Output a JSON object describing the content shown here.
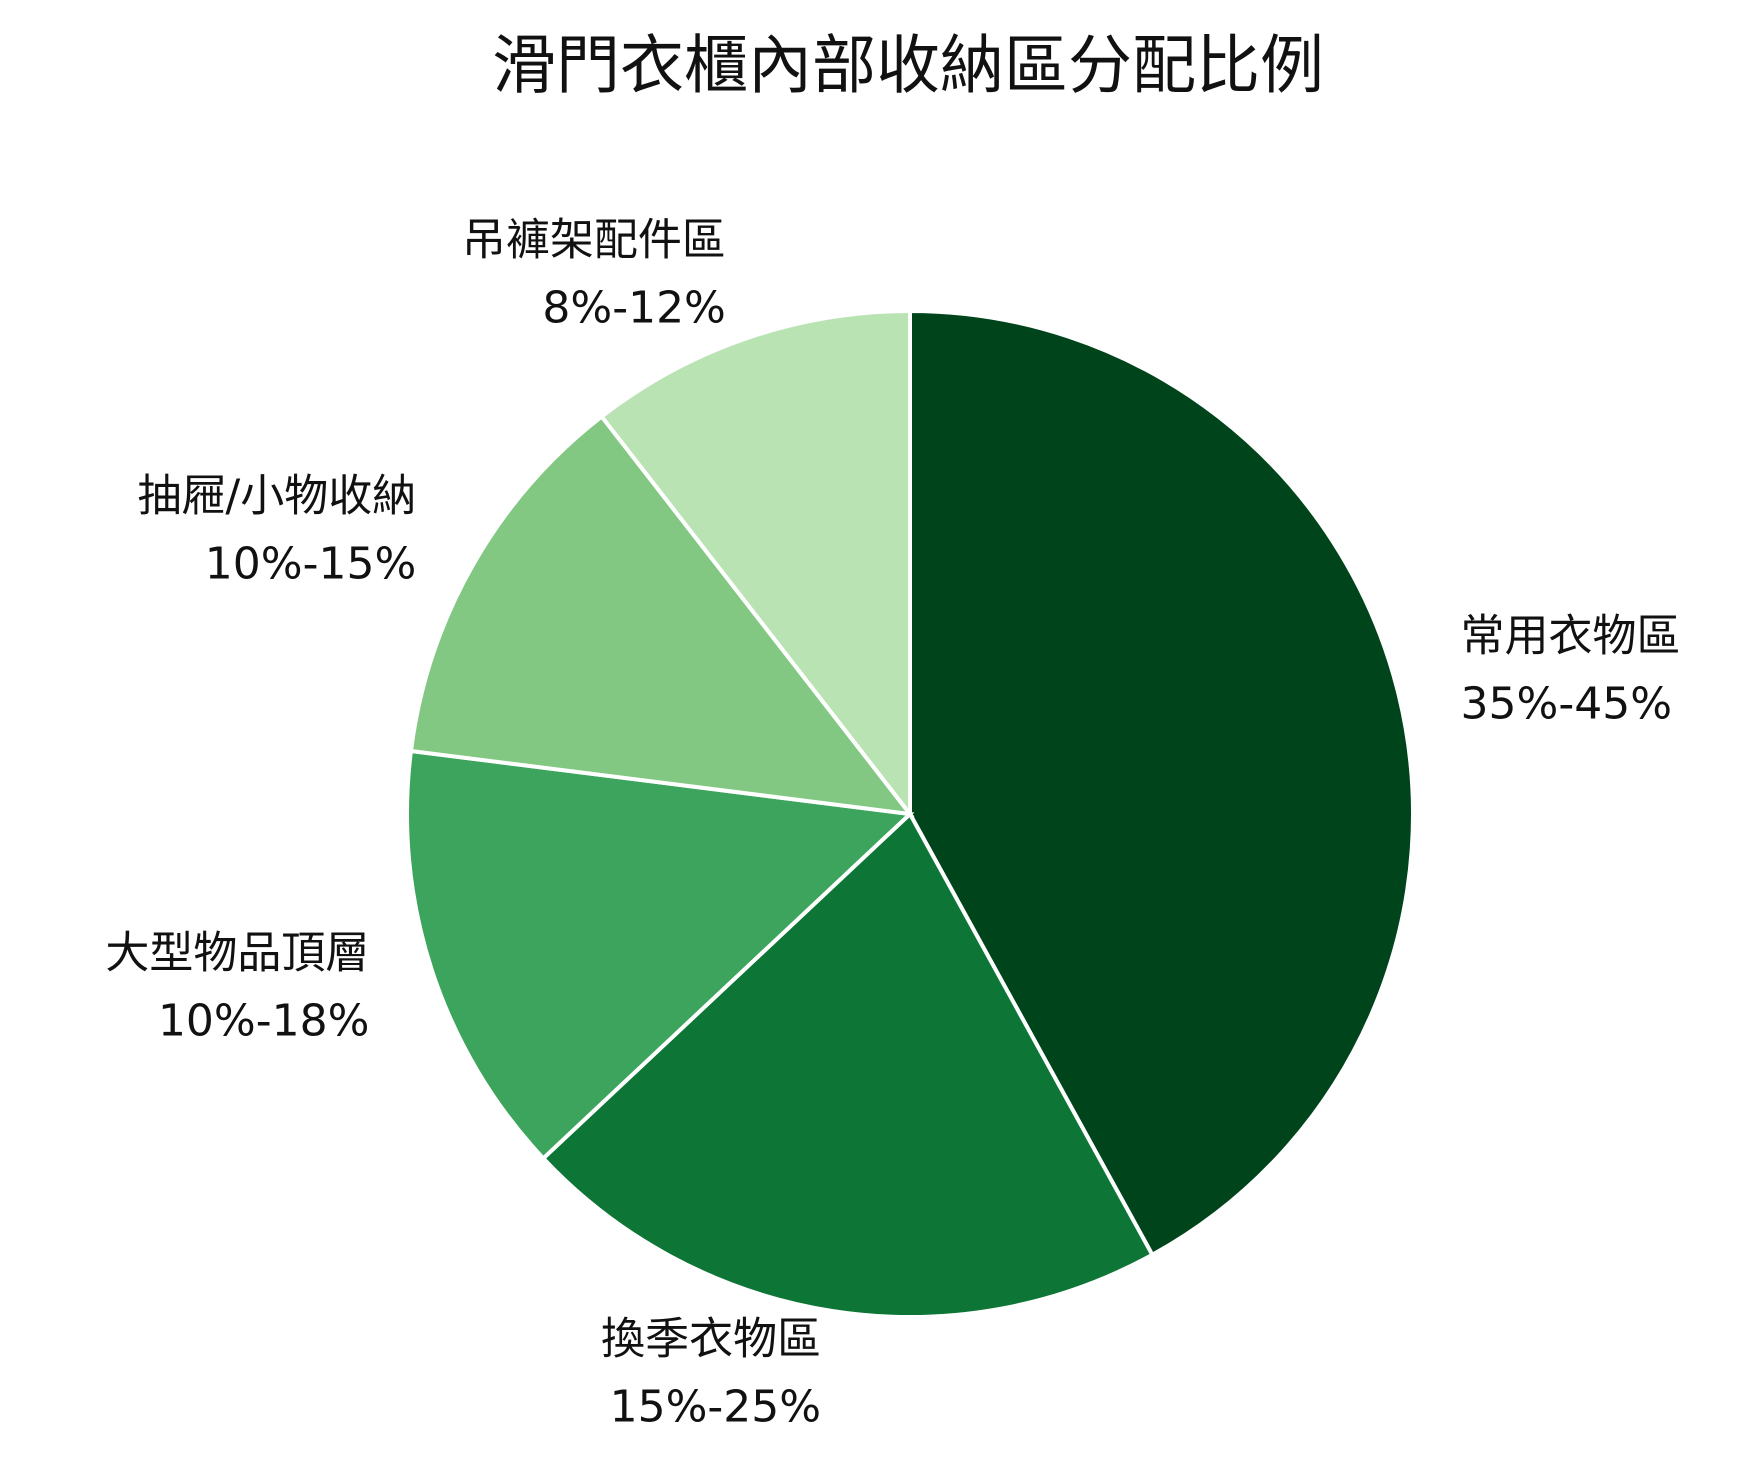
{
  "chart_data": {
    "type": "pie",
    "title": "滑門衣櫃內部收納區分配比例",
    "categories": [
      "常用衣物區",
      "換季衣物區",
      "大型物品頂層",
      "抽屜/小物收納",
      "吊褲架配件區"
    ],
    "ranges": [
      "35%-45%",
      "15%-25%",
      "10%-18%",
      "10%-15%",
      "8%-12%"
    ],
    "values": [
      42,
      21,
      14,
      12.5,
      10.5
    ],
    "colors": [
      "#00441b",
      "#0d7535",
      "#3ca45c",
      "#82c882",
      "#b9e3b3"
    ]
  }
}
